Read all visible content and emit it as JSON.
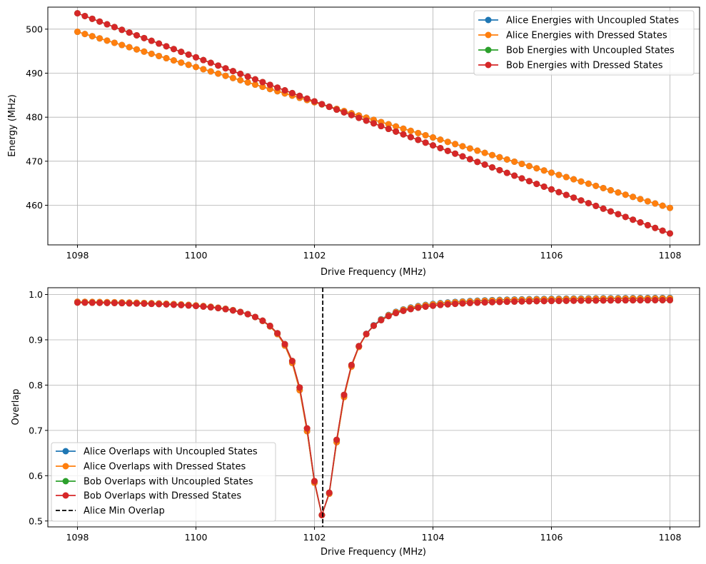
{
  "charts": [
    {
      "type": "line",
      "xlabel": "Drive Frequency (MHz)",
      "ylabel": "Energy (MHz)",
      "xlim": [
        1097.5,
        1108.5
      ],
      "ylim": [
        451,
        505
      ],
      "xticks": [
        "1098",
        "1100",
        "1102",
        "1104",
        "1106",
        "1108"
      ],
      "yticks": [
        "460",
        "470",
        "480",
        "490",
        "500"
      ],
      "grid": true,
      "legend_position": "top-right",
      "x_start": 1098,
      "x_end": 1108,
      "x_count": 81,
      "series": [
        {
          "name": "Alice Energies with Uncoupled States",
          "color": "#1f77b4",
          "y_start": 499.4,
          "y_end": 459.4
        },
        {
          "name": "Alice Energies with Dressed States",
          "color": "#ff7f0e",
          "y_start": 499.4,
          "y_end": 459.4
        },
        {
          "name": "Bob Energies with Uncoupled States",
          "color": "#2ca02c",
          "y_start": 503.6,
          "y_end": 453.6
        },
        {
          "name": "Bob Energies with Dressed States",
          "color": "#d62728",
          "y_start": 503.6,
          "y_end": 453.6
        }
      ]
    },
    {
      "type": "line",
      "xlabel": "Drive Frequency (MHz)",
      "ylabel": "Overlap",
      "xlim": [
        1097.5,
        1108.5
      ],
      "ylim": [
        0.487,
        1.015
      ],
      "xticks": [
        "1098",
        "1100",
        "1102",
        "1104",
        "1106",
        "1108"
      ],
      "yticks": [
        "0.5",
        "0.6",
        "0.7",
        "0.8",
        "0.9",
        "1.0"
      ],
      "grid": true,
      "legend_position": "bottom-left",
      "x_start": 1098,
      "x_end": 1108,
      "x_count": 81,
      "min_line": {
        "name": "Alice Min Overlap",
        "x": 1102.14,
        "color": "#000000"
      },
      "series": [
        {
          "name": "Alice Overlaps with Uncoupled States",
          "color": "#1f77b4",
          "y_left": 0.987,
          "y_right": 0.994,
          "y_min": 0.512,
          "x_min": 1102.14,
          "gamma": 0.33
        },
        {
          "name": "Alice Overlaps with Dressed States",
          "color": "#ff7f0e",
          "y_left": 0.987,
          "y_right": 0.993,
          "y_min": 0.512,
          "x_min": 1102.14,
          "gamma": 0.33
        },
        {
          "name": "Bob Overlaps with Uncoupled States",
          "color": "#2ca02c",
          "y_left": 0.985,
          "y_right": 0.989,
          "y_min": 0.512,
          "x_min": 1102.14,
          "gamma": 0.32
        },
        {
          "name": "Bob Overlaps with Dressed States",
          "color": "#d62728",
          "y_left": 0.985,
          "y_right": 0.989,
          "y_min": 0.512,
          "x_min": 1102.14,
          "gamma": 0.32
        }
      ]
    }
  ]
}
